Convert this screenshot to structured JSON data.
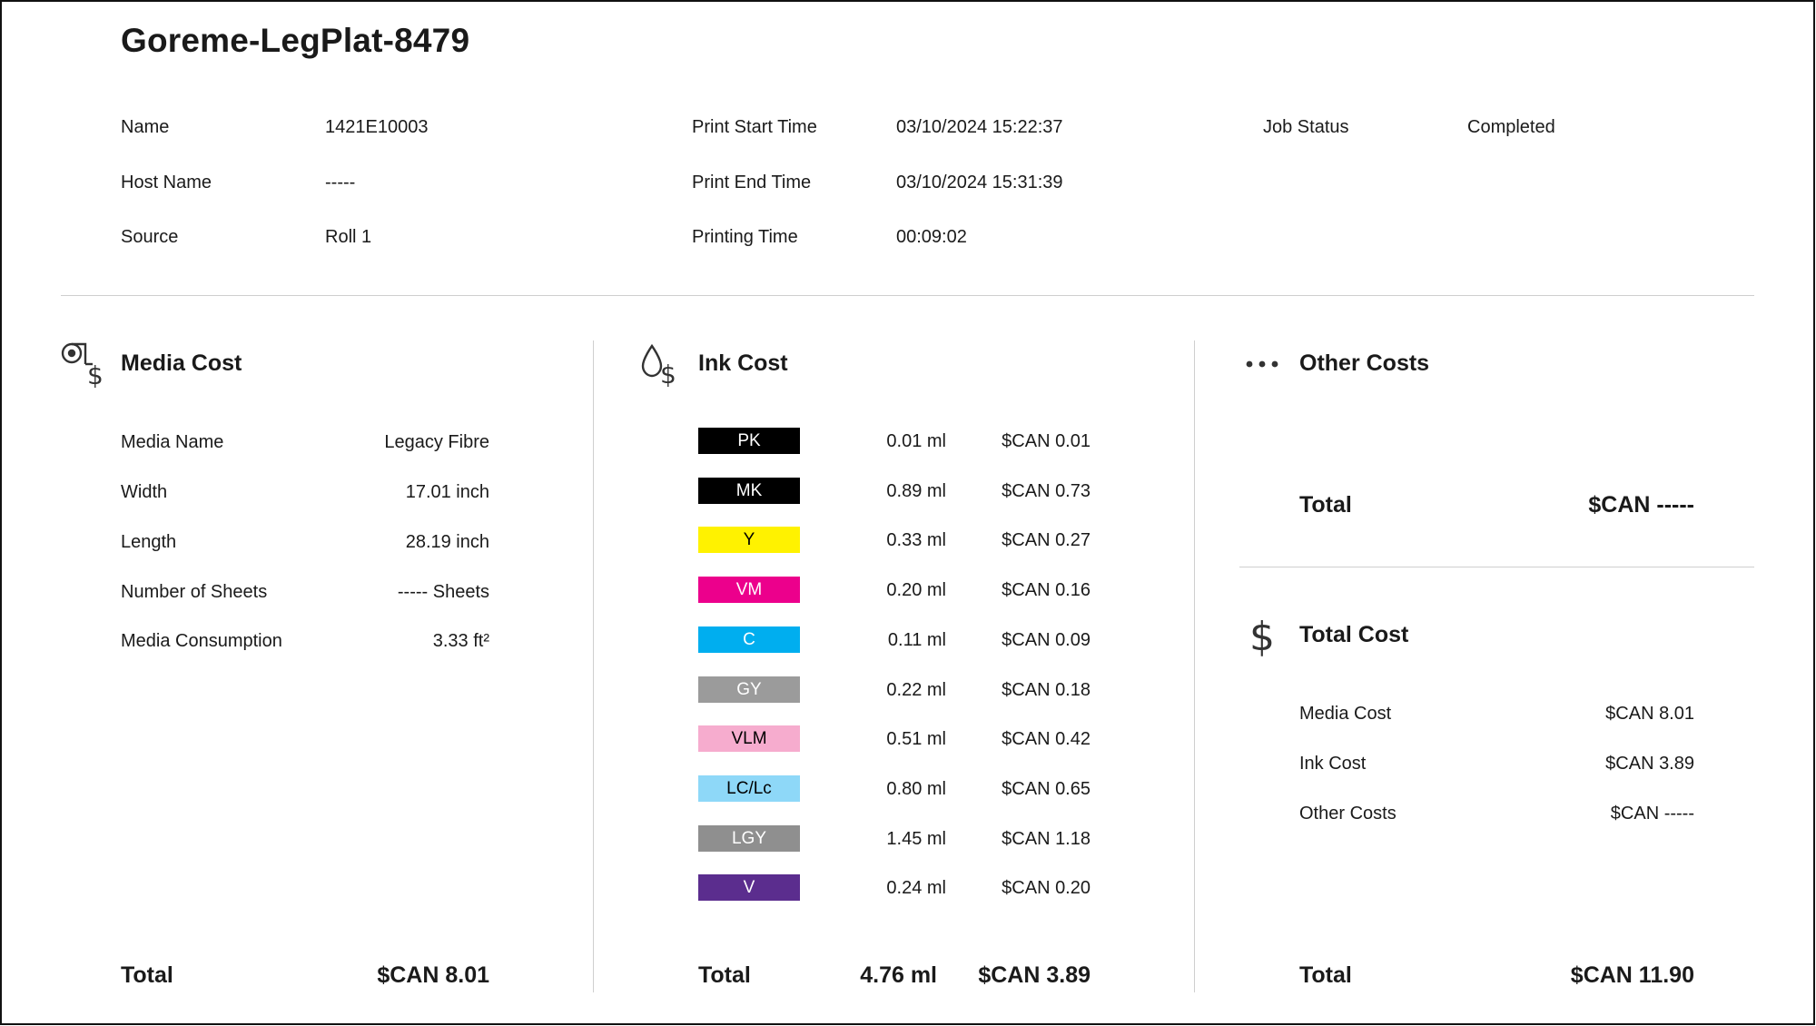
{
  "job_title": "Goreme-LegPlat-8479",
  "info": {
    "name_label": "Name",
    "name_value": "1421E10003",
    "host_label": "Host Name",
    "host_value": "-----",
    "source_label": "Source",
    "source_value": "Roll 1",
    "start_label": "Print Start Time",
    "start_value": "03/10/2024 15:22:37",
    "end_label": "Print End Time",
    "end_value": "03/10/2024 15:31:39",
    "printing_label": "Printing Time",
    "printing_value": "00:09:02",
    "status_label": "Job Status",
    "status_value": "Completed"
  },
  "media_cost": {
    "title": "Media Cost",
    "icon": "media-roll-dollar-icon",
    "rows": [
      {
        "label": "Media Name",
        "value": "Legacy Fibre"
      },
      {
        "label": "Width",
        "value": "17.01 inch"
      },
      {
        "label": "Length",
        "value": "28.19 inch"
      },
      {
        "label": "Number of Sheets",
        "value": "----- Sheets"
      },
      {
        "label": "Media Consumption",
        "value": "3.33 ft²"
      }
    ],
    "total_label": "Total",
    "total_value": "$CAN 8.01"
  },
  "ink_cost": {
    "title": "Ink Cost",
    "icon": "ink-drop-dollar-icon",
    "inks": [
      {
        "name": "PK",
        "bg": "#000000",
        "fg": "#ffffff",
        "ml": "0.01 ml",
        "cost": "$CAN 0.01"
      },
      {
        "name": "MK",
        "bg": "#000000",
        "fg": "#ffffff",
        "ml": "0.89 ml",
        "cost": "$CAN 0.73"
      },
      {
        "name": "Y",
        "bg": "#fff200",
        "fg": "#000000",
        "ml": "0.33 ml",
        "cost": "$CAN 0.27"
      },
      {
        "name": "VM",
        "bg": "#ec008c",
        "fg": "#ffffff",
        "ml": "0.20 ml",
        "cost": "$CAN 0.16"
      },
      {
        "name": "C",
        "bg": "#00aeef",
        "fg": "#ffffff",
        "ml": "0.11 ml",
        "cost": "$CAN 0.09"
      },
      {
        "name": "GY",
        "bg": "#9b9b9b",
        "fg": "#ffffff",
        "ml": "0.22 ml",
        "cost": "$CAN 0.18"
      },
      {
        "name": "VLM",
        "bg": "#f6acce",
        "fg": "#000000",
        "ml": "0.51 ml",
        "cost": "$CAN 0.42"
      },
      {
        "name": "LC/Lc",
        "bg": "#8ed8f8",
        "fg": "#000000",
        "ml": "0.80 ml",
        "cost": "$CAN 0.65"
      },
      {
        "name": "LGY",
        "bg": "#8f8f8f",
        "fg": "#ffffff",
        "ml": "1.45 ml",
        "cost": "$CAN 1.18"
      },
      {
        "name": "V",
        "bg": "#5b2d8e",
        "fg": "#ffffff",
        "ml": "0.24 ml",
        "cost": "$CAN 0.20"
      }
    ],
    "total_label": "Total",
    "total_ml": "4.76 ml",
    "total_value": "$CAN 3.89"
  },
  "other_costs": {
    "title": "Other Costs",
    "icon": "more-dots-icon",
    "total_label": "Total",
    "total_value": "$CAN -----"
  },
  "total_cost": {
    "title": "Total Cost",
    "icon": "dollar-icon",
    "rows": [
      {
        "label": "Media Cost",
        "value": "$CAN 8.01"
      },
      {
        "label": "Ink Cost",
        "value": "$CAN 3.89"
      },
      {
        "label": "Other Costs",
        "value": "$CAN -----"
      }
    ],
    "total_label": "Total",
    "total_value": "$CAN 11.90"
  }
}
